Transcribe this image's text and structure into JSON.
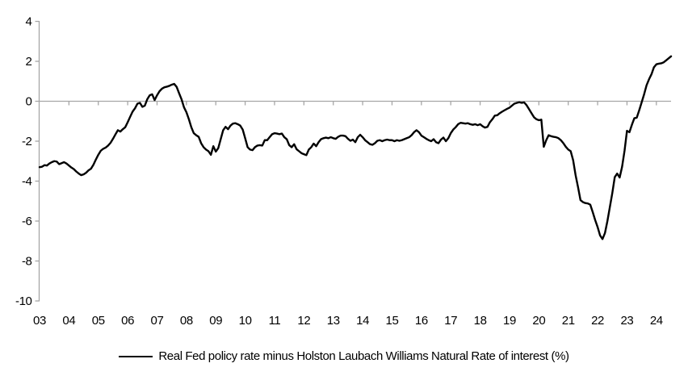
{
  "chart_data": {
    "type": "line",
    "title": "",
    "legend": "Real Fed policy rate minus Holston Laubach Williams Natural Rate of interest (%)",
    "x_tick_labels": [
      "03",
      "04",
      "05",
      "06",
      "07",
      "08",
      "09",
      "10",
      "11",
      "12",
      "13",
      "14",
      "15",
      "16",
      "17",
      "18",
      "19",
      "20",
      "21",
      "22",
      "23",
      "24"
    ],
    "y_tick_values": [
      4,
      2,
      0,
      -2,
      -4,
      -6,
      -8,
      -10
    ],
    "ylim": [
      -10,
      4
    ],
    "x_start": "2003-01",
    "x_end": "2024-07",
    "frequency": "monthly",
    "grid": "zero-line-only",
    "legend_position": "bottom-center",
    "line_color": "#000000",
    "axis_color": "#A6A6A6",
    "text_color": "#000000",
    "series": [
      {
        "name": "Real Fed policy rate minus Holston Laubach Williams Natural Rate of interest (%)",
        "values": [
          -3.3,
          -3.28,
          -3.2,
          -3.22,
          -3.12,
          -3.05,
          -3.0,
          -3.02,
          -3.15,
          -3.1,
          -3.05,
          -3.12,
          -3.22,
          -3.32,
          -3.4,
          -3.52,
          -3.62,
          -3.7,
          -3.66,
          -3.58,
          -3.46,
          -3.38,
          -3.18,
          -2.92,
          -2.68,
          -2.48,
          -2.38,
          -2.32,
          -2.22,
          -2.08,
          -1.88,
          -1.66,
          -1.45,
          -1.52,
          -1.4,
          -1.3,
          -1.05,
          -0.78,
          -0.52,
          -0.35,
          -0.12,
          -0.08,
          -0.28,
          -0.22,
          0.1,
          0.3,
          0.35,
          0.06,
          0.3,
          0.5,
          0.63,
          0.7,
          0.73,
          0.77,
          0.83,
          0.87,
          0.72,
          0.4,
          0.1,
          -0.3,
          -0.55,
          -0.9,
          -1.3,
          -1.6,
          -1.7,
          -1.78,
          -2.1,
          -2.3,
          -2.42,
          -2.5,
          -2.68,
          -2.25,
          -2.52,
          -2.35,
          -1.9,
          -1.45,
          -1.28,
          -1.4,
          -1.22,
          -1.12,
          -1.1,
          -1.15,
          -1.22,
          -1.42,
          -1.85,
          -2.3,
          -2.42,
          -2.45,
          -2.3,
          -2.22,
          -2.2,
          -2.22,
          -1.95,
          -1.95,
          -1.8,
          -1.65,
          -1.6,
          -1.62,
          -1.65,
          -1.62,
          -1.8,
          -1.9,
          -2.2,
          -2.3,
          -2.15,
          -2.4,
          -2.5,
          -2.6,
          -2.65,
          -2.7,
          -2.42,
          -2.3,
          -2.12,
          -2.25,
          -2.05,
          -1.9,
          -1.85,
          -1.82,
          -1.85,
          -1.8,
          -1.85,
          -1.88,
          -1.78,
          -1.72,
          -1.72,
          -1.75,
          -1.88,
          -1.98,
          -1.92,
          -2.05,
          -1.8,
          -1.68,
          -1.8,
          -1.95,
          -2.05,
          -2.15,
          -2.18,
          -2.1,
          -1.98,
          -1.95,
          -2.0,
          -1.95,
          -1.92,
          -1.95,
          -1.95,
          -2.0,
          -1.95,
          -1.98,
          -1.95,
          -1.9,
          -1.85,
          -1.8,
          -1.7,
          -1.55,
          -1.45,
          -1.55,
          -1.72,
          -1.8,
          -1.88,
          -1.95,
          -2.0,
          -1.9,
          -2.05,
          -2.1,
          -1.92,
          -1.82,
          -2.0,
          -1.85,
          -1.6,
          -1.42,
          -1.3,
          -1.15,
          -1.08,
          -1.1,
          -1.12,
          -1.1,
          -1.15,
          -1.18,
          -1.15,
          -1.2,
          -1.15,
          -1.25,
          -1.32,
          -1.28,
          -1.05,
          -0.9,
          -0.72,
          -0.7,
          -0.6,
          -0.52,
          -0.45,
          -0.38,
          -0.32,
          -0.22,
          -0.12,
          -0.08,
          -0.05,
          -0.08,
          -0.06,
          -0.2,
          -0.4,
          -0.6,
          -0.8,
          -0.9,
          -0.95,
          -0.92,
          -2.28,
          -1.95,
          -1.7,
          -1.75,
          -1.78,
          -1.8,
          -1.85,
          -1.95,
          -2.1,
          -2.28,
          -2.42,
          -2.5,
          -2.95,
          -3.7,
          -4.3,
          -4.95,
          -5.05,
          -5.1,
          -5.12,
          -5.18,
          -5.55,
          -5.95,
          -6.3,
          -6.72,
          -6.9,
          -6.6,
          -6.0,
          -5.3,
          -4.6,
          -3.8,
          -3.62,
          -3.82,
          -3.28,
          -2.48,
          -1.48,
          -1.55,
          -1.18,
          -0.85,
          -0.82,
          -0.45,
          -0.05,
          0.35,
          0.8,
          1.1,
          1.35,
          1.7,
          1.85,
          1.88,
          1.9,
          1.95,
          2.05,
          2.15,
          2.25
        ]
      }
    ]
  }
}
